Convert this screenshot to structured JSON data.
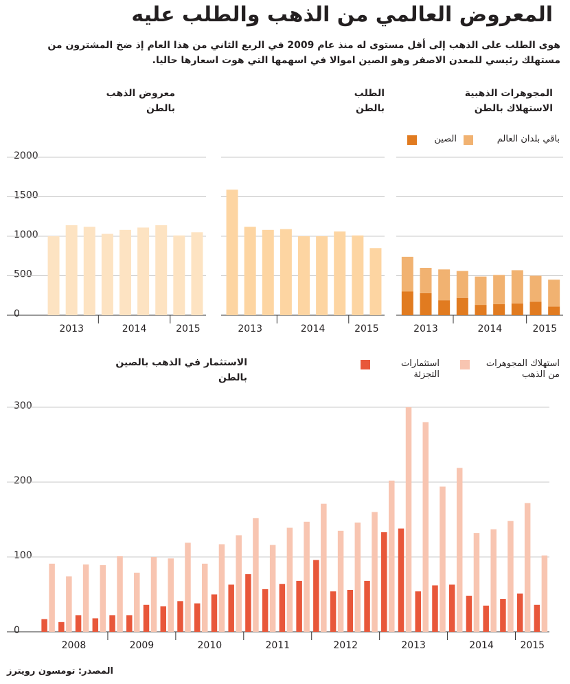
{
  "title": "المعروض العالمي من الذهب والطلب عليه",
  "subtitle": [
    "هوى الطلب على الذهب إلى أقل مستوى له منذ عام 2009 في الربع الثاني من هذا العام إذ ضخ المشترون من",
    "مستهلك رئيسي للمعدن الاصفر وهو الصين اموالا في اسهمها التي هوت اسعارها حاليا."
  ],
  "source": "المصدر: تومسون رويترز",
  "chart_data": [
    {
      "type": "bar",
      "title": "معروض الذهب",
      "unit": "بالطن",
      "categories": [
        "2013",
        null,
        null,
        "2014",
        null,
        null,
        null,
        "2015",
        null
      ],
      "values": [
        1000,
        1140,
        1120,
        1030,
        1080,
        1110,
        1140,
        1010,
        1050
      ],
      "color": "#fde3c2",
      "ylim": [
        0,
        2000
      ],
      "yticks": [
        0,
        500,
        1000,
        1500,
        2000
      ],
      "grid": true
    },
    {
      "type": "bar",
      "title": "الطلب",
      "unit": "بالطن",
      "categories": [
        "2013",
        null,
        null,
        "2014",
        null,
        null,
        null,
        "2015",
        null
      ],
      "values": [
        1590,
        1120,
        1080,
        1090,
        1000,
        1000,
        1060,
        1010,
        850
      ],
      "color": "#fdd5a2",
      "ylim": [
        0,
        2000
      ],
      "yticks": [
        0,
        500,
        1000,
        1500,
        2000
      ],
      "grid": true
    },
    {
      "type": "stacked_bar",
      "title": "المجوهرات الذهبية",
      "unit": "الاستهلاك بالطن",
      "categories": [
        "2013",
        null,
        null,
        "2014",
        null,
        null,
        null,
        "2015",
        null
      ],
      "series": [
        {
          "name": "الصين",
          "color": "#e17b20",
          "values": [
            300,
            280,
            190,
            220,
            130,
            140,
            150,
            170,
            110
          ]
        },
        {
          "name": "باقي بلدان العالم",
          "color": "#f1b271",
          "values": [
            440,
            320,
            390,
            340,
            360,
            370,
            420,
            330,
            340
          ]
        }
      ],
      "ylim": [
        0,
        2000
      ],
      "yticks": [
        0,
        500,
        1000,
        1500,
        2000
      ],
      "grid": true
    },
    {
      "type": "grouped_bar",
      "title": "الاستثمار في الذهب بالصين",
      "unit": "بالطن",
      "categories": [
        "2008",
        null,
        null,
        null,
        "2009",
        null,
        null,
        null,
        "2010",
        null,
        null,
        null,
        "2011",
        null,
        null,
        null,
        "2012",
        null,
        null,
        null,
        "2013",
        null,
        null,
        null,
        "2014",
        null,
        null,
        null,
        "2015",
        null
      ],
      "series": [
        {
          "name": "استثمارات التجزئة",
          "color": "#e8573a",
          "values": [
            17,
            13,
            22,
            18,
            22,
            22,
            36,
            34,
            41,
            38,
            50,
            63,
            77,
            57,
            64,
            68,
            96,
            54,
            56,
            68,
            133,
            138,
            54,
            62,
            63,
            48,
            35,
            44,
            51,
            36
          ]
        },
        {
          "name": "استهلاك المجوهرات من الذهب",
          "color": "#f8c5b1",
          "values": [
            91,
            74,
            90,
            89,
            101,
            79,
            100,
            98,
            119,
            91,
            117,
            129,
            152,
            116,
            139,
            147,
            171,
            135,
            146,
            160,
            202,
            300,
            280,
            194,
            219,
            132,
            137,
            148,
            172,
            102
          ]
        }
      ],
      "ylim": [
        0,
        300
      ],
      "yticks": [
        0,
        100,
        200,
        300
      ],
      "grid": true
    }
  ]
}
